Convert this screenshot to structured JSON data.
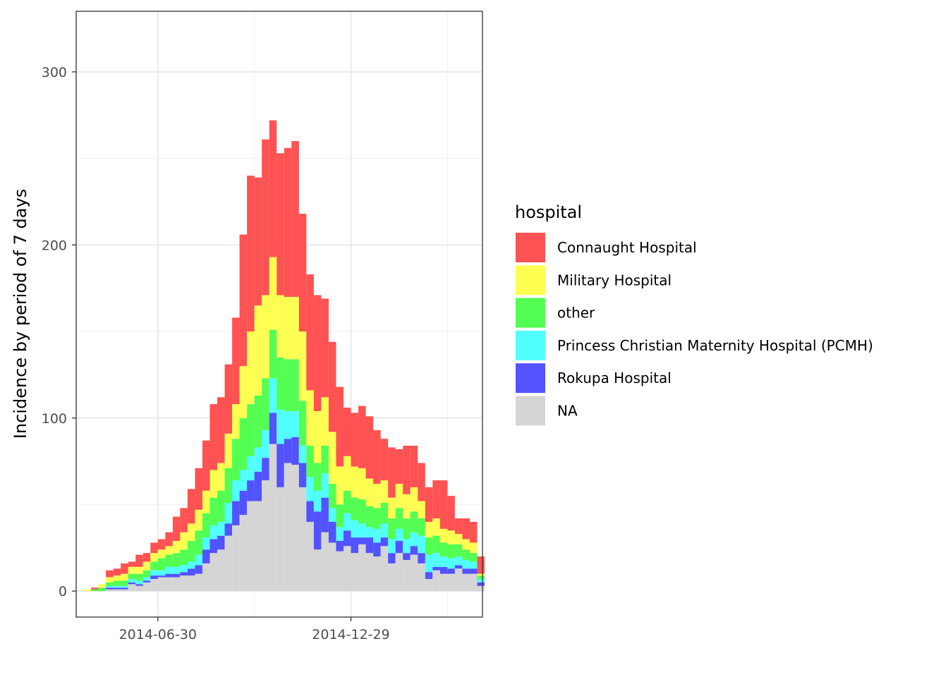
{
  "chart_data": {
    "type": "bar",
    "stacked": true,
    "title": "",
    "xlabel": "",
    "ylabel": "Incidence by period of 7 days",
    "ylim": [
      -15,
      335
    ],
    "yticks": [
      0,
      100,
      200,
      300
    ],
    "xlim": [
      "2014-04-14",
      "2015-05-02"
    ],
    "xticks": [
      "2014-06-30",
      "2014-12-29"
    ],
    "grid": true,
    "legend": {
      "title": "hospital",
      "position": "right"
    },
    "x": [
      "2014-04-21",
      "2014-04-28",
      "2014-05-05",
      "2014-05-12",
      "2014-05-19",
      "2014-05-26",
      "2014-06-02",
      "2014-06-09",
      "2014-06-16",
      "2014-06-23",
      "2014-06-30",
      "2014-07-07",
      "2014-07-14",
      "2014-07-21",
      "2014-07-28",
      "2014-08-04",
      "2014-08-11",
      "2014-08-18",
      "2014-08-25",
      "2014-09-01",
      "2014-09-08",
      "2014-09-15",
      "2014-09-22",
      "2014-09-29",
      "2014-10-06",
      "2014-10-13",
      "2014-10-20",
      "2014-10-27",
      "2014-11-03",
      "2014-11-10",
      "2014-11-17",
      "2014-11-24",
      "2014-12-01",
      "2014-12-08",
      "2014-12-15",
      "2014-12-22",
      "2014-12-29",
      "2015-01-05",
      "2015-01-12",
      "2015-01-19",
      "2015-01-26",
      "2015-02-02",
      "2015-02-09",
      "2015-02-16",
      "2015-02-23",
      "2015-03-02",
      "2015-03-09",
      "2015-03-16",
      "2015-03-23",
      "2015-03-30",
      "2015-04-06",
      "2015-04-13",
      "2015-04-20",
      "2015-04-27"
    ],
    "series": [
      {
        "name": "NA",
        "color": "#d3d3d3",
        "values": [
          0,
          0,
          0,
          1,
          1,
          1,
          4,
          3,
          5,
          7,
          8,
          8,
          8,
          9,
          9,
          10,
          16,
          22,
          24,
          32,
          38,
          44,
          52,
          52,
          64,
          85,
          60,
          74,
          73,
          60,
          40,
          24,
          34,
          28,
          23,
          26,
          22,
          27,
          22,
          20,
          26,
          16,
          22,
          18,
          21,
          16,
          7,
          12,
          10,
          10,
          13,
          10,
          10,
          3
        ]
      },
      {
        "name": "Rokupa Hospital",
        "color": "#4949ff",
        "values": [
          0,
          0,
          0,
          1,
          1,
          1,
          1,
          1,
          1,
          2,
          1,
          2,
          2,
          2,
          4,
          5,
          8,
          8,
          8,
          7,
          14,
          14,
          12,
          17,
          13,
          18,
          25,
          14,
          16,
          14,
          12,
          22,
          20,
          12,
          6,
          9,
          9,
          4,
          9,
          8,
          5,
          6,
          7,
          4,
          5,
          6,
          4,
          2,
          4,
          3,
          2,
          3,
          3,
          2
        ]
      },
      {
        "name": "Princess Christian Maternity Hospital (PCMH)",
        "color": "#49ffff",
        "values": [
          0,
          0,
          0,
          1,
          1,
          1,
          2,
          2,
          2,
          3,
          3,
          4,
          4,
          4,
          4,
          6,
          7,
          8,
          8,
          12,
          12,
          12,
          14,
          14,
          16,
          20,
          20,
          16,
          15,
          10,
          14,
          12,
          14,
          8,
          8,
          10,
          10,
          8,
          6,
          8,
          8,
          8,
          7,
          8,
          8,
          10,
          10,
          8,
          6,
          6,
          5,
          5,
          4,
          2
        ]
      },
      {
        "name": "other",
        "color": "#49ff49",
        "values": [
          0,
          1,
          2,
          2,
          3,
          3,
          3,
          4,
          4,
          5,
          7,
          7,
          8,
          9,
          12,
          14,
          14,
          16,
          18,
          20,
          24,
          30,
          30,
          30,
          30,
          28,
          30,
          30,
          30,
          26,
          18,
          16,
          16,
          14,
          13,
          13,
          13,
          14,
          12,
          12,
          12,
          12,
          12,
          12,
          12,
          10,
          10,
          10,
          8,
          8,
          7,
          6,
          5,
          2
        ]
      },
      {
        "name": "Military Hospital",
        "color": "#ffff49",
        "values": [
          1,
          0,
          2,
          3,
          3,
          4,
          4,
          4,
          5,
          5,
          5,
          5,
          7,
          10,
          10,
          12,
          13,
          16,
          16,
          20,
          20,
          30,
          42,
          52,
          48,
          42,
          36,
          36,
          36,
          40,
          32,
          30,
          28,
          30,
          22,
          20,
          18,
          18,
          16,
          14,
          13,
          12,
          14,
          14,
          14,
          10,
          9,
          10,
          8,
          8,
          6,
          6,
          6,
          1
        ]
      },
      {
        "name": "Connaught Hospital",
        "color": "#ff4949",
        "values": [
          0,
          1,
          0,
          4,
          4,
          6,
          3,
          7,
          5,
          6,
          6,
          8,
          14,
          14,
          20,
          24,
          29,
          38,
          38,
          40,
          50,
          76,
          90,
          74,
          90,
          79,
          82,
          86,
          90,
          68,
          67,
          67,
          57,
          52,
          46,
          28,
          31,
          36,
          36,
          31,
          24,
          29,
          20,
          28,
          24,
          22,
          20,
          22,
          28,
          20,
          9,
          12,
          12,
          10
        ]
      }
    ]
  }
}
